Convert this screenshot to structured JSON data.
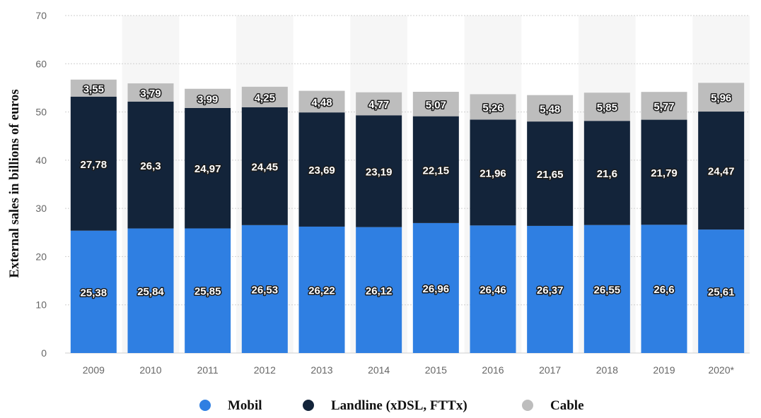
{
  "colors": {
    "mobil": "#2f7fe2",
    "landline": "#13243a",
    "cable": "#bdbdbd",
    "grid": "#cfcfcf",
    "band": "#f6f6f6"
  },
  "chart_data": {
    "type": "bar",
    "stacked": true,
    "title": "",
    "xlabel": "",
    "ylabel": "External sales in billions of euros",
    "ylim": [
      0,
      70
    ],
    "yticks": [
      0,
      10,
      20,
      30,
      40,
      50,
      60,
      70
    ],
    "categories": [
      "2009",
      "2010",
      "2011",
      "2012",
      "2013",
      "2014",
      "2015",
      "2016",
      "2017",
      "2018",
      "2019",
      "2020*"
    ],
    "series": [
      {
        "name": "Mobil",
        "color": "#2f7fe2",
        "values": [
          25.38,
          25.84,
          25.85,
          26.53,
          26.22,
          26.12,
          26.96,
          26.46,
          26.37,
          26.55,
          26.6,
          25.61
        ],
        "labels": [
          "25,38",
          "25,84",
          "25,85",
          "26,53",
          "26,22",
          "26,12",
          "26,96",
          "26,46",
          "26,37",
          "26,55",
          "26,6",
          "25,61"
        ]
      },
      {
        "name": "Landline (xDSL, FTTx)",
        "color": "#13243a",
        "values": [
          27.78,
          26.3,
          24.97,
          24.45,
          23.69,
          23.19,
          22.15,
          21.96,
          21.65,
          21.6,
          21.79,
          24.47
        ],
        "labels": [
          "27,78",
          "26,3",
          "24,97",
          "24,45",
          "23,69",
          "23,19",
          "22,15",
          "21,96",
          "21,65",
          "21,6",
          "21,79",
          "24,47"
        ]
      },
      {
        "name": "Cable",
        "color": "#bdbdbd",
        "values": [
          3.55,
          3.79,
          3.99,
          4.25,
          4.48,
          4.77,
          5.07,
          5.26,
          5.48,
          5.85,
          5.77,
          5.96
        ],
        "labels": [
          "3,55",
          "3,79",
          "3,99",
          "4,25",
          "4,48",
          "4,77",
          "5,07",
          "5,26",
          "5,48",
          "5,85",
          "5,77",
          "5,96"
        ]
      }
    ],
    "grid": true,
    "legend": "bottom-center"
  }
}
